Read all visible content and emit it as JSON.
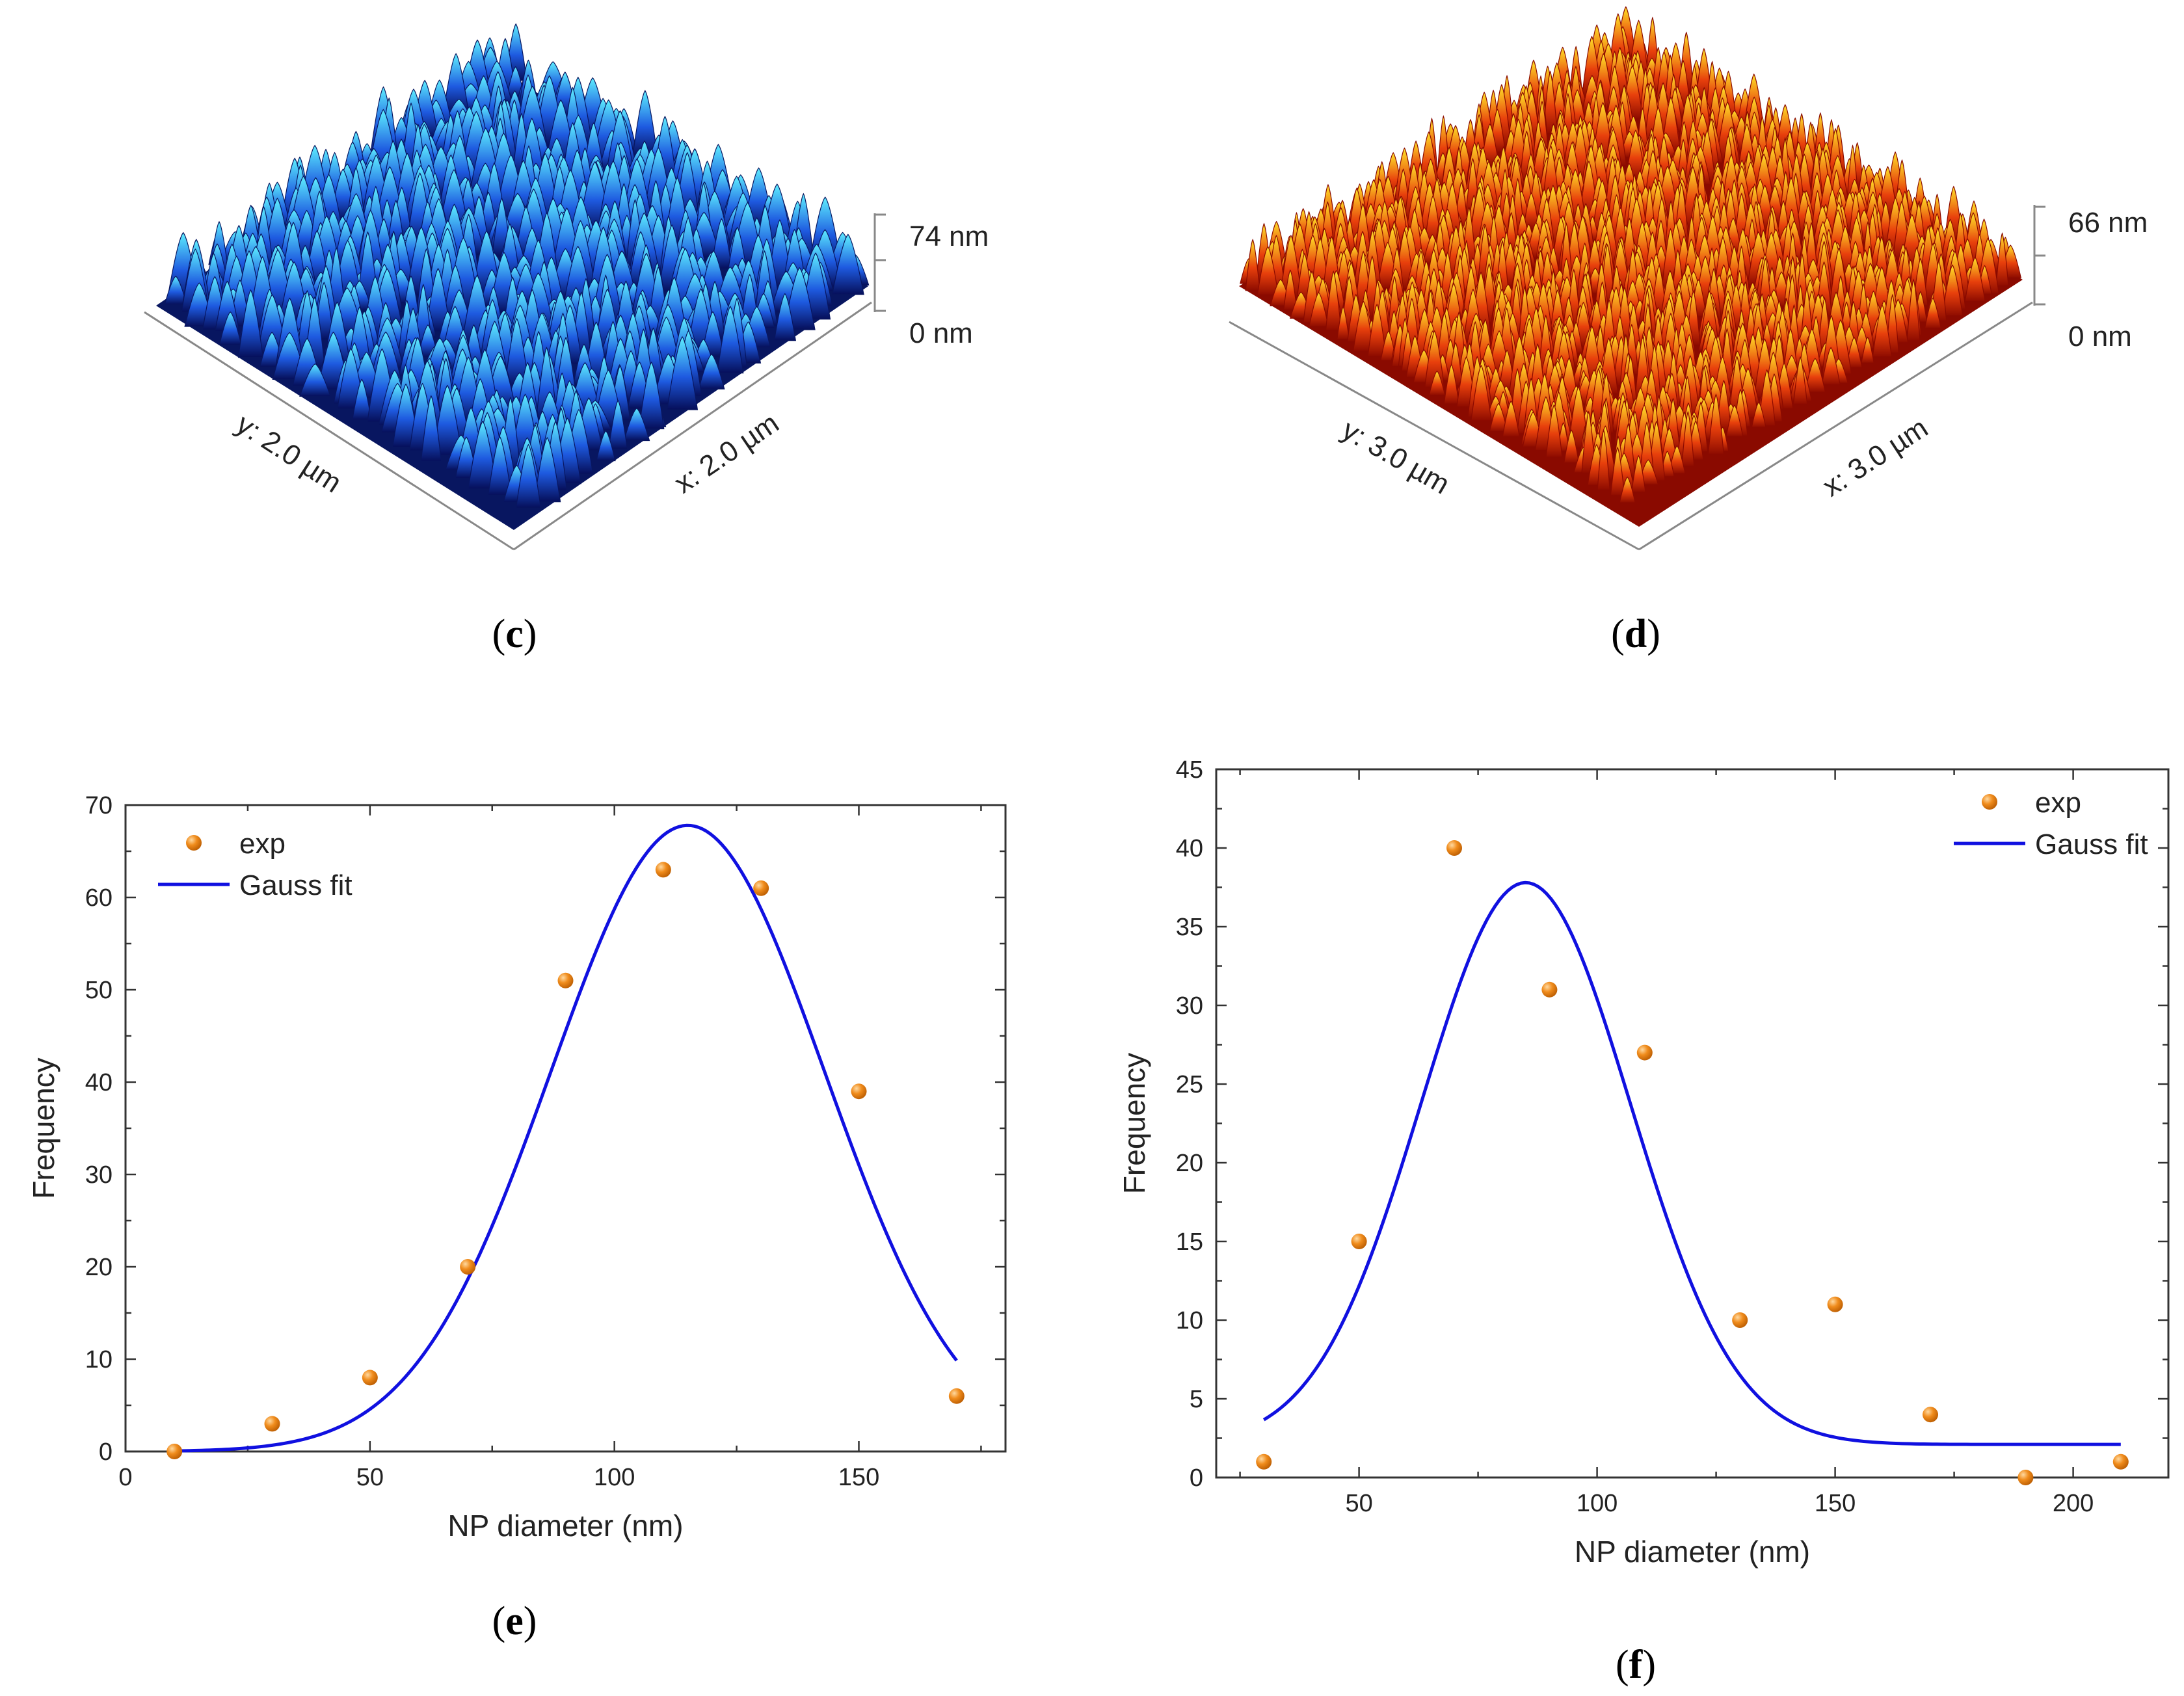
{
  "colors": {
    "fit_line": "#1010e0",
    "marker": "#f08c1c",
    "afm_blue_dark": "#0a1870",
    "afm_blue_light": "#40e4ff",
    "afm_red_dark": "#a81000",
    "afm_red_light": "#ffe020"
  },
  "afm_panels": [
    {
      "id": "c",
      "letter": "c",
      "height_max_label": "74 nm",
      "height_min_label": "0 nm",
      "x_axis_label": "x: 2.0 µm",
      "y_axis_label": "y: 2.0 µm",
      "colormap": "blue"
    },
    {
      "id": "d",
      "letter": "d",
      "height_max_label": "66 nm",
      "height_min_label": "0 nm",
      "x_axis_label": "x: 3.0 µm",
      "y_axis_label": "y: 3.0 µm",
      "colormap": "orange"
    }
  ],
  "chart_data": [
    {
      "id": "e",
      "letter": "e",
      "type": "scatter",
      "title": "",
      "xlabel": "NP diameter (nm)",
      "ylabel": "Frequency",
      "xlim": [
        0,
        180
      ],
      "ylim": [
        0,
        70
      ],
      "xticks": [
        0,
        50,
        100,
        150
      ],
      "yticks": [
        0,
        10,
        20,
        30,
        40,
        50,
        60,
        70
      ],
      "legend": {
        "position": "top-left",
        "entries": [
          "exp",
          "Gauss fit"
        ]
      },
      "series": [
        {
          "name": "exp",
          "kind": "points",
          "x": [
            10,
            30,
            50,
            70,
            90,
            110,
            130,
            150,
            170
          ],
          "y": [
            0,
            3,
            8,
            20,
            51,
            63,
            61,
            39,
            6
          ]
        },
        {
          "name": "Gauss fit",
          "kind": "gaussian",
          "x_range": [
            10,
            170
          ],
          "y0": 0,
          "A": 67.8,
          "xc": 115,
          "sigma": 28
        }
      ]
    },
    {
      "id": "f",
      "letter": "f",
      "type": "scatter",
      "title": "",
      "xlabel": "NP diameter (nm)",
      "ylabel": "Frequency",
      "xlim": [
        20,
        220
      ],
      "ylim": [
        0,
        45
      ],
      "xticks": [
        50,
        100,
        150,
        200
      ],
      "yticks": [
        0,
        5,
        10,
        15,
        20,
        25,
        30,
        35,
        40,
        45
      ],
      "legend": {
        "position": "top-right",
        "entries": [
          "exp",
          "Gauss fit"
        ]
      },
      "series": [
        {
          "name": "exp",
          "kind": "points",
          "x": [
            30,
            50,
            70,
            90,
            110,
            130,
            150,
            170,
            190,
            210
          ],
          "y": [
            1,
            15,
            40,
            31,
            27,
            10,
            11,
            4,
            0,
            1
          ]
        },
        {
          "name": "Gauss fit",
          "kind": "gaussian",
          "x_range": [
            30,
            210
          ],
          "y0": 2.1,
          "A": 35.7,
          "xc": 85,
          "sigma": 22
        }
      ]
    }
  ]
}
